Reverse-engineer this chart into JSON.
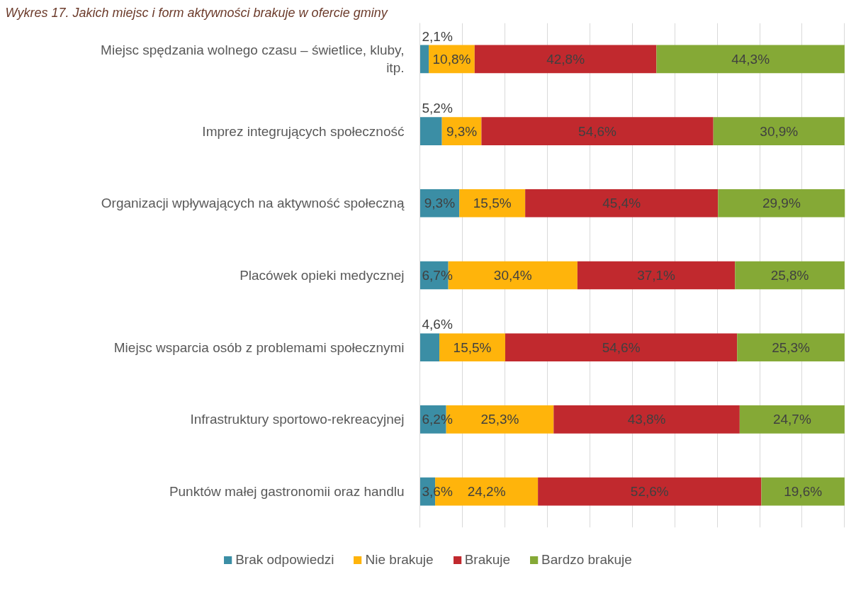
{
  "chart_data": {
    "type": "bar",
    "orientation": "horizontal",
    "stacked": true,
    "title": "Wykres 17. Jakich miejsc i form aktywności brakuje w ofercie gminy",
    "categories": [
      "Miejsc spędzania wolnego czasu – świetlice, kluby, itp.",
      "Imprez integrujących społeczność",
      "Organizacji wpływających na aktywność społeczną",
      "Placówek opieki medycznej",
      "Miejsc wsparcia osób z problemami społecznymi",
      "Infrastruktury sportowo-rekreacyjnej",
      "Punktów małej gastronomii oraz handlu"
    ],
    "series": [
      {
        "name": "Brak odpowiedzi",
        "color": "#3b8ea5",
        "values": [
          2.1,
          5.2,
          9.3,
          6.7,
          4.6,
          6.2,
          3.6
        ],
        "value_labels": [
          "2,1%",
          "5,2%",
          "9,3%",
          "6,7%",
          "4,6%",
          "6,2%",
          "3,6%"
        ]
      },
      {
        "name": "Nie brakuje",
        "color": "#ffb40b",
        "values": [
          10.8,
          9.3,
          15.5,
          30.4,
          15.5,
          25.3,
          24.2
        ],
        "value_labels": [
          "10,8%",
          "9,3%",
          "15,5%",
          "30,4%",
          "15,5%",
          "25,3%",
          "24,2%"
        ]
      },
      {
        "name": "Brakuje",
        "color": "#c1292e",
        "values": [
          42.8,
          54.6,
          45.4,
          37.1,
          54.6,
          43.8,
          52.6
        ],
        "value_labels": [
          "42,8%",
          "54,6%",
          "45,4%",
          "37,1%",
          "54,6%",
          "43,8%",
          "52,6%"
        ]
      },
      {
        "name": "Bardzo brakuje",
        "color": "#85a936",
        "values": [
          44.3,
          30.9,
          29.9,
          25.8,
          25.3,
          24.7,
          19.6
        ],
        "value_labels": [
          "44,3%",
          "30,9%",
          "29,9%",
          "25,8%",
          "25,3%",
          "24,7%",
          "19,6%"
        ]
      }
    ],
    "xlim": [
      0,
      100.1
    ],
    "xticks": [
      {
        "value": 0,
        "label": null
      },
      {
        "value": 10,
        "label": null
      },
      {
        "value": 20,
        "label": null
      },
      {
        "value": 30,
        "label": null
      },
      {
        "value": 40,
        "label": null
      },
      {
        "value": 50,
        "label": null
      },
      {
        "value": 60,
        "label": null
      },
      {
        "value": 70,
        "label": null
      },
      {
        "value": 80,
        "label": null
      },
      {
        "value": 90,
        "label": null
      },
      {
        "value": 100,
        "label": null
      }
    ],
    "tick_labels": "y",
    "grid": "x",
    "legend": "bottom"
  }
}
